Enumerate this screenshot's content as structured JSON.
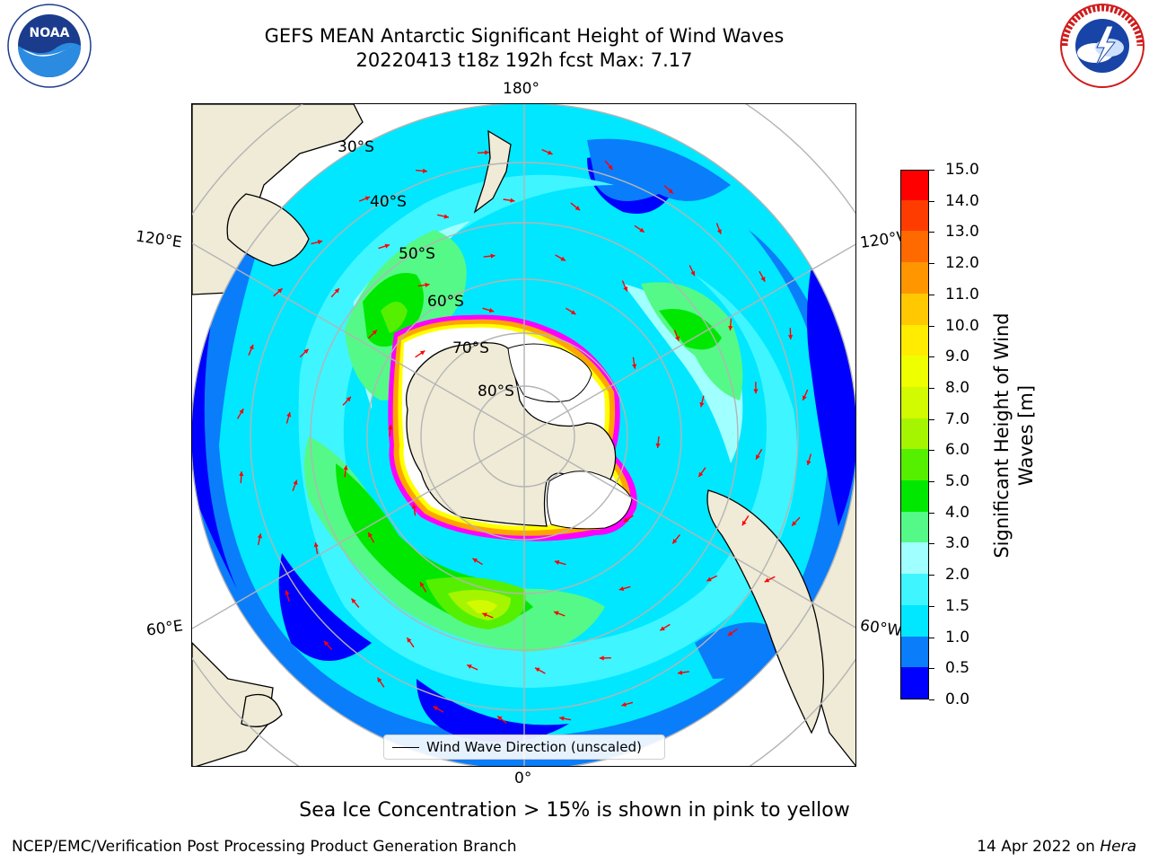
{
  "header": {
    "title_line1": "GEFS MEAN Antarctic Significant Height of Wind Waves",
    "title_line2": "20220413 t18z 192h fcst   Max: 7.17"
  },
  "logos": {
    "left": {
      "icon": "noaa-logo",
      "text": "NOAA"
    },
    "right": {
      "icon": "national-weather-service-logo"
    }
  },
  "map": {
    "projection": "south-polar-stereographic",
    "longitude_labels": {
      "top": "180°",
      "bottom": "0°",
      "upper_left": "120°E",
      "upper_right": "120°W",
      "lower_left": "60°E",
      "lower_right": "60°W"
    },
    "latitude_labels": [
      "30°S",
      "40°S",
      "50°S",
      "60°S",
      "70°S",
      "80°S"
    ],
    "colors": {
      "land": "#efebd7",
      "ice_free_ocean": "#ffffff",
      "sea_ice_edge": [
        "#ff00ff",
        "#ffa500",
        "#ffff00"
      ],
      "arrow": "#ff0000",
      "graticule": "#b4b4b4"
    },
    "legend": {
      "label": "Wind Wave Direction (unscaled)"
    }
  },
  "colorbar": {
    "label": "Significant Height of Wind Waves [m]",
    "ticks": [
      "0.0",
      "0.5",
      "1.0",
      "1.5",
      "2.0",
      "3.0",
      "4.0",
      "5.0",
      "6.0",
      "7.0",
      "8.0",
      "9.0",
      "10.0",
      "11.0",
      "12.0",
      "13.0",
      "14.0",
      "15.0"
    ],
    "colors": [
      "#0000ff",
      "#0a7dfb",
      "#00e7ff",
      "#3ff5ff",
      "#a0ffff",
      "#55f987",
      "#00e800",
      "#55f000",
      "#a5f500",
      "#d2fa00",
      "#f0ff00",
      "#ffec00",
      "#ffc800",
      "#ff9600",
      "#ff6a00",
      "#ff3c00",
      "#ff0000"
    ]
  },
  "footer": {
    "caption": "Sea Ice Concentration > 15% is shown in pink to yellow",
    "credit": "NCEP/EMC/Verification Post Processing Product Generation Branch",
    "date_text": "14 Apr 2022 on ",
    "machine": "Hera"
  }
}
